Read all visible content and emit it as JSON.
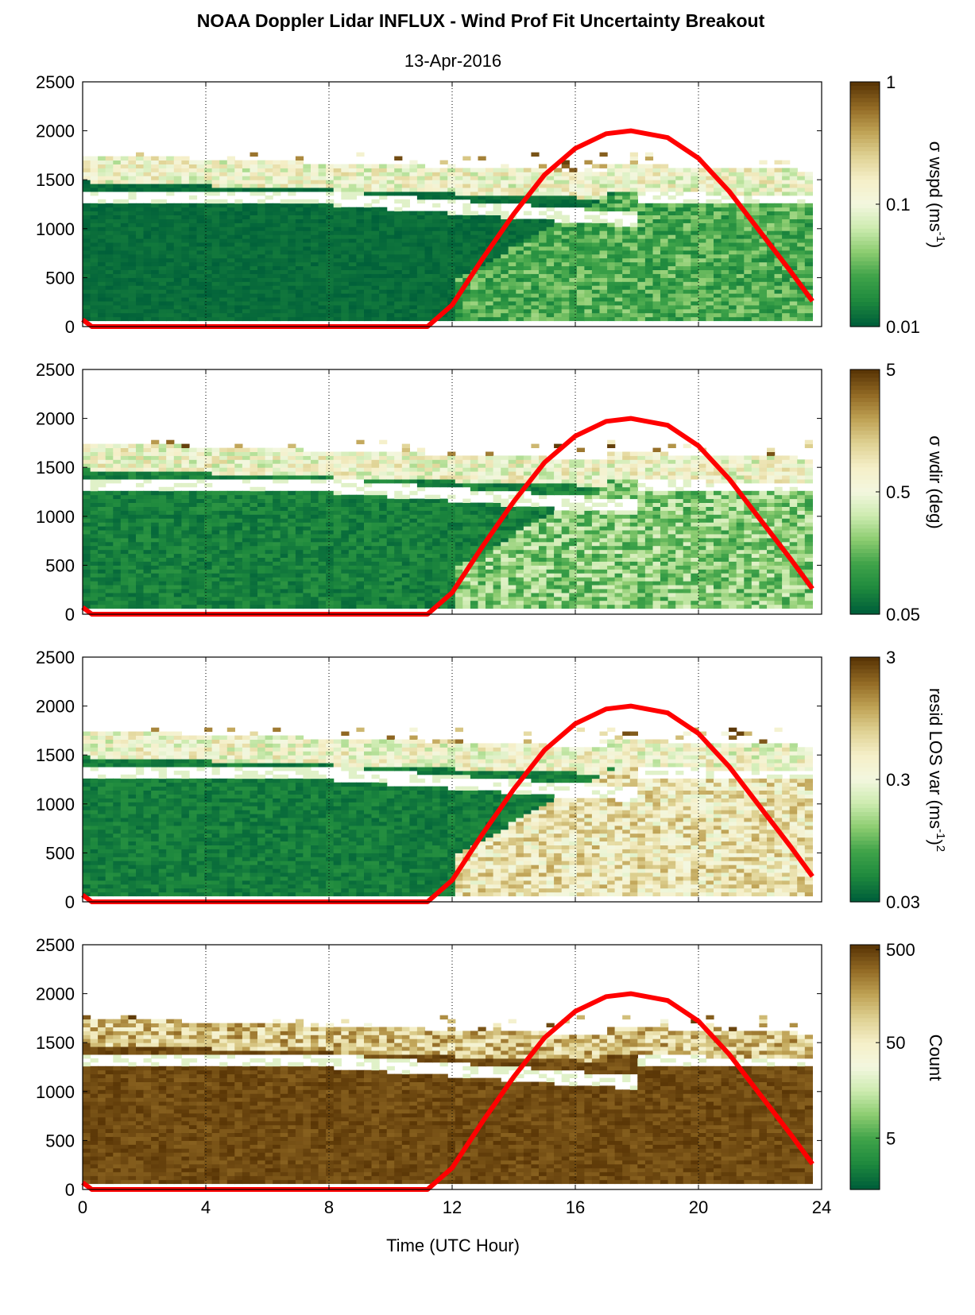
{
  "figure": {
    "title": "NOAA Doppler Lidar INFLUX - Wind Prof Fit Uncertainty Breakout",
    "subtitle": "13-Apr-2016",
    "xlabel": "Time (UTC Hour)"
  },
  "colors": {
    "sun_line": "#ff0000",
    "colormap": [
      "#00603a",
      "#1f8a3e",
      "#3fa349",
      "#8ccc70",
      "#cdebb0",
      "#f3f7df",
      "#f5efc8",
      "#dfd293",
      "#bfa255",
      "#936b25",
      "#5a3606"
    ]
  },
  "chart_data": [
    {
      "type": "heatmap",
      "panel": 1,
      "x_range": [
        0,
        24
      ],
      "y_range": [
        0,
        2500
      ],
      "x_ticks": [
        "0",
        "4",
        "8",
        "12",
        "16",
        "20",
        "24"
      ],
      "y_ticks": [
        "0",
        "500",
        "1000",
        "1500",
        "2000",
        "2500"
      ],
      "colorbar_label": "σ wspd (ms",
      "colorbar_sup": "-1",
      "colorbar_suffix": ")",
      "colorbar_scale": "log",
      "colorbar_ticks": [
        "1",
        "0.1",
        "0.01"
      ],
      "colorbar_range": [
        0.01,
        1
      ],
      "overlay_line": {
        "points": [
          [
            0,
            70
          ],
          [
            0.3,
            0
          ],
          [
            11.2,
            0
          ],
          [
            12,
            220
          ],
          [
            13,
            700
          ],
          [
            14,
            1150
          ],
          [
            15,
            1550
          ],
          [
            16,
            1820
          ],
          [
            17,
            1970
          ],
          [
            17.8,
            2000
          ],
          [
            19,
            1930
          ],
          [
            20,
            1720
          ],
          [
            21,
            1380
          ],
          [
            22,
            970
          ],
          [
            23,
            560
          ],
          [
            23.7,
            260
          ]
        ]
      }
    },
    {
      "type": "heatmap",
      "panel": 2,
      "x_range": [
        0,
        24
      ],
      "y_range": [
        0,
        2500
      ],
      "x_ticks": [
        "0",
        "4",
        "8",
        "12",
        "16",
        "20",
        "24"
      ],
      "y_ticks": [
        "0",
        "500",
        "1000",
        "1500",
        "2000",
        "2500"
      ],
      "colorbar_label": "σ wdir (deg)",
      "colorbar_sup": "",
      "colorbar_suffix": "",
      "colorbar_scale": "log",
      "colorbar_ticks": [
        "5",
        "0.5",
        "0.05"
      ],
      "colorbar_range": [
        0.05,
        5
      ],
      "overlay_line": {
        "points": [
          [
            0,
            70
          ],
          [
            0.3,
            0
          ],
          [
            11.2,
            0
          ],
          [
            12,
            220
          ],
          [
            13,
            700
          ],
          [
            14,
            1150
          ],
          [
            15,
            1550
          ],
          [
            16,
            1820
          ],
          [
            17,
            1970
          ],
          [
            17.8,
            2000
          ],
          [
            19,
            1930
          ],
          [
            20,
            1720
          ],
          [
            21,
            1380
          ],
          [
            22,
            970
          ],
          [
            23,
            560
          ],
          [
            23.7,
            260
          ]
        ]
      }
    },
    {
      "type": "heatmap",
      "panel": 3,
      "x_range": [
        0,
        24
      ],
      "y_range": [
        0,
        2500
      ],
      "x_ticks": [
        "0",
        "4",
        "8",
        "12",
        "16",
        "20",
        "24"
      ],
      "y_ticks": [
        "0",
        "500",
        "1000",
        "1500",
        "2000",
        "2500"
      ],
      "colorbar_label": "resid LOS var (ms",
      "colorbar_sup": "-1",
      "colorbar_suffix": ")",
      "colorbar_sup2": "2",
      "colorbar_scale": "log",
      "colorbar_ticks": [
        "3",
        "0.3",
        "0.03"
      ],
      "colorbar_range": [
        0.03,
        3
      ],
      "overlay_line": {
        "points": [
          [
            0,
            70
          ],
          [
            0.3,
            0
          ],
          [
            11.2,
            0
          ],
          [
            12,
            220
          ],
          [
            13,
            700
          ],
          [
            14,
            1150
          ],
          [
            15,
            1550
          ],
          [
            16,
            1820
          ],
          [
            17,
            1970
          ],
          [
            17.8,
            2000
          ],
          [
            19,
            1930
          ],
          [
            20,
            1720
          ],
          [
            21,
            1380
          ],
          [
            22,
            970
          ],
          [
            23,
            560
          ],
          [
            23.7,
            260
          ]
        ]
      }
    },
    {
      "type": "heatmap",
      "panel": 4,
      "x_range": [
        0,
        24
      ],
      "y_range": [
        0,
        2500
      ],
      "x_ticks": [
        "0",
        "4",
        "8",
        "12",
        "16",
        "20",
        "24"
      ],
      "y_ticks": [
        "0",
        "500",
        "1000",
        "1500",
        "2000",
        "2500"
      ],
      "colorbar_label": "Count",
      "colorbar_sup": "",
      "colorbar_suffix": "",
      "colorbar_scale": "log",
      "colorbar_ticks": [
        "500",
        "50",
        "5"
      ],
      "colorbar_range": [
        1,
        500
      ],
      "overlay_line": {
        "points": [
          [
            0,
            70
          ],
          [
            0.3,
            0
          ],
          [
            11.2,
            0
          ],
          [
            12,
            220
          ],
          [
            13,
            700
          ],
          [
            14,
            1150
          ],
          [
            15,
            1550
          ],
          [
            16,
            1820
          ],
          [
            17,
            1970
          ],
          [
            17.8,
            2000
          ],
          [
            19,
            1930
          ],
          [
            20,
            1720
          ],
          [
            21,
            1380
          ],
          [
            22,
            970
          ],
          [
            23,
            560
          ],
          [
            23.7,
            260
          ]
        ]
      }
    }
  ]
}
